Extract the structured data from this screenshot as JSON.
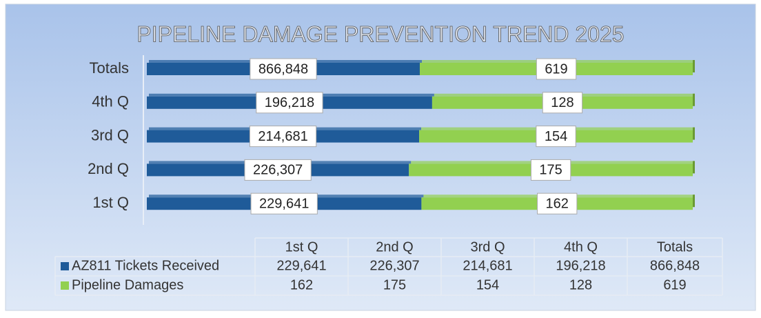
{
  "chart_data": {
    "type": "stacked_bar_horizontal",
    "title": "PIPELINE DAMAGE PREVENTION TREND 2025",
    "categories": [
      "1st Q",
      "2nd Q",
      "3rd Q",
      "4th Q",
      "Totals"
    ],
    "series": [
      {
        "name": "AZ811 Tickets Received",
        "color": "#1f5b99",
        "values": [
          229641,
          226307,
          214681,
          196218,
          866848
        ],
        "value_labels": [
          "229,641",
          "226,307",
          "214,681",
          "196,218",
          "866,848"
        ]
      },
      {
        "name": "Pipeline Damages",
        "color": "#92d050",
        "values": [
          162,
          175,
          154,
          128,
          619
        ]
      }
    ],
    "data_table": true
  }
}
